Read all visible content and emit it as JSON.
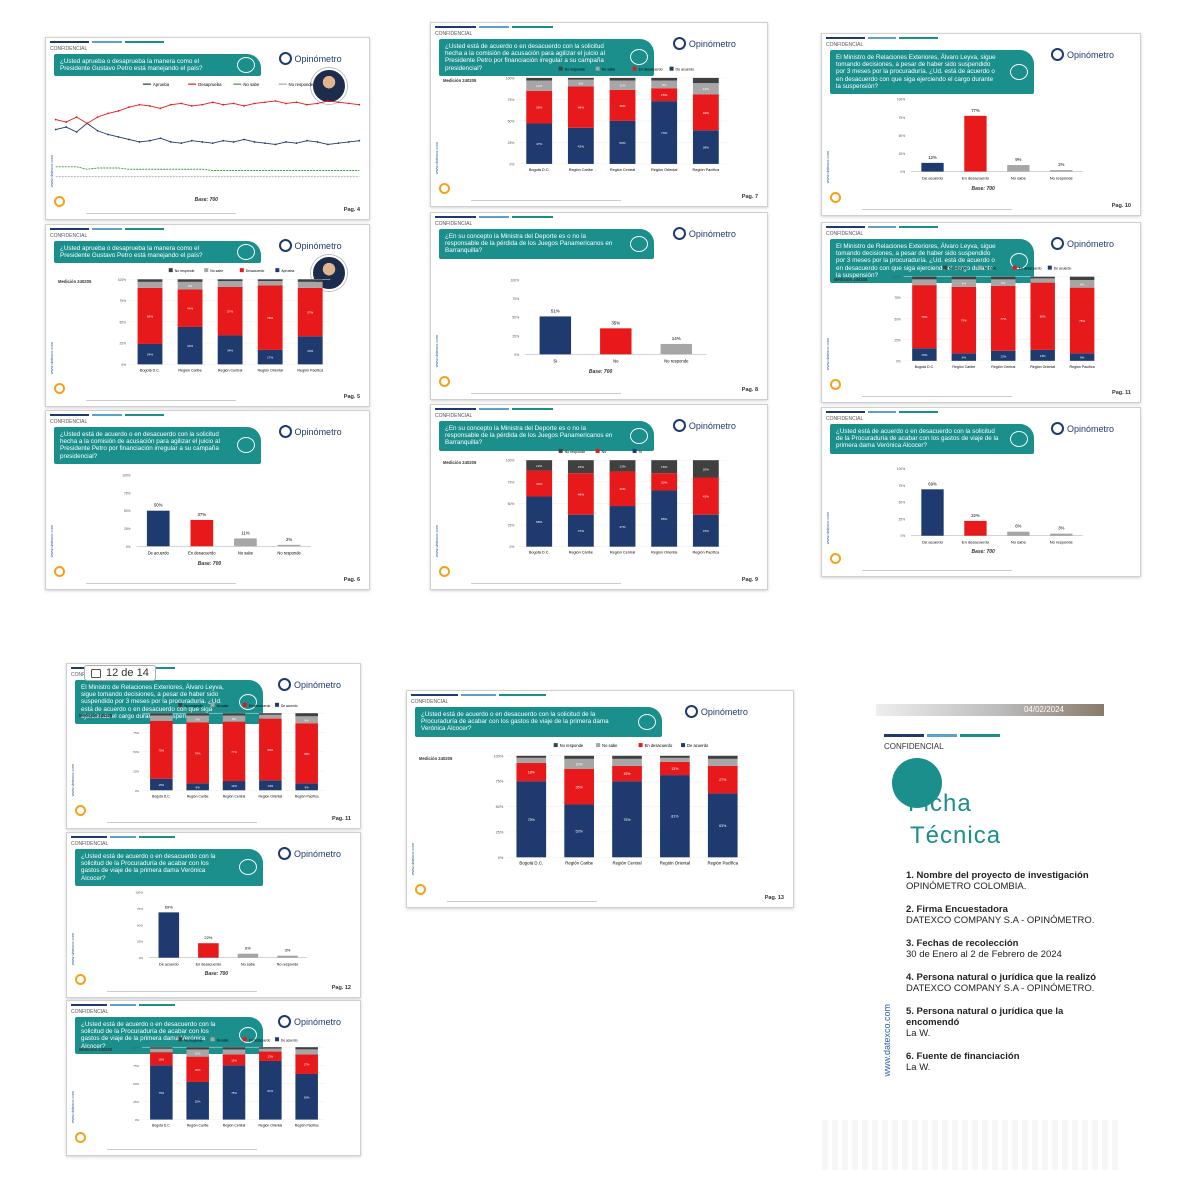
{
  "common": {
    "confidencial": "CONFIDENCIAL",
    "logo": "Opinómetro",
    "site": "www.datexco.com",
    "base": "Base: 700",
    "medicion": "Medición 240205",
    "colors": {
      "teal": "#1a8f8c",
      "navy": "#1e3a6e",
      "red": "#e8191a",
      "gray": "#a6a6a6",
      "lightgray": "#d9d9d9",
      "dark": "#404040"
    }
  },
  "questions": {
    "q_petro": "¿Usted aprueba o desaprueba la manera como el Presidente Gustavo Petro está manejando el país?",
    "q_comision": "¿Usted está de acuerdo o en desacuerdo con la solicitud hecha a la comisión de acusación para agilizar el juicio al Presidente Petro por financiación irregular a su campaña presidencial?",
    "q_deporte": "¿En su concepto la Ministra del Deporte es o no la responsable de la pérdida de los Juegos Panamericanos en Barranquilla?",
    "q_leyva": "El Ministro de Relaciones Exteriores, Álvaro Leyva, sigue tomando decisiones, a pesar de haber sido suspendido por 3 meses por la procuraduría. ¿Ud. está de acuerdo o en desacuerdo con que siga ejerciendo el cargo durante la suspensión?",
    "q_procuraduria": "¿Usted está de acuerdo o en desacuerdo con la solicitud de la Procuraduría de acabar con los gastos de viaje de la primera dama Verónica Alcocer?"
  },
  "regions": [
    "Bogotá D.C.",
    "Región Caribe",
    "Región Central",
    "Región Oriental",
    "Región Pacífica"
  ],
  "pages": {
    "p4": "Pag. 4",
    "p5": "Pag. 5",
    "p6": "Pag. 6",
    "p7": "Pag. 7",
    "p8": "Pag. 8",
    "p9": "Pag. 9",
    "p10": "Pag. 10",
    "p11": "Pag. 11",
    "p12": "Pag. 12",
    "p13": "Pag. 13"
  },
  "viewer_counter": "12 de 14",
  "chart_data": [
    {
      "id": "p4",
      "type": "line",
      "legend": [
        "Aprueba",
        "Desaprueba",
        "No sabe",
        "No responde"
      ],
      "series": [
        {
          "name": "Aprueba",
          "values": [
            40,
            42,
            38,
            45,
            39,
            36,
            34,
            32,
            30,
            31,
            33,
            30,
            29,
            31,
            30,
            29,
            31,
            30,
            32,
            30,
            29,
            28,
            30,
            29,
            31,
            30,
            28,
            29,
            30,
            31
          ]
        },
        {
          "name": "Desaprueba",
          "values": [
            48,
            46,
            50,
            45,
            50,
            53,
            55,
            58,
            60,
            59,
            57,
            60,
            61,
            59,
            60,
            62,
            60,
            61,
            59,
            61,
            62,
            63,
            61,
            62,
            60,
            61,
            63,
            62,
            61,
            60
          ]
        },
        {
          "name": "No sabe",
          "values": [
            10,
            10,
            10,
            8,
            9,
            9,
            9,
            8,
            8,
            8,
            8,
            8,
            8,
            8,
            8,
            7,
            7,
            7,
            7,
            7,
            7,
            7,
            7,
            7,
            7,
            7,
            7,
            7,
            7,
            7
          ]
        },
        {
          "name": "No responde",
          "values": [
            2,
            2,
            2,
            2,
            2,
            2,
            2,
            2,
            2,
            2,
            2,
            2,
            2,
            2,
            2,
            2,
            2,
            2,
            2,
            2,
            2,
            2,
            2,
            2,
            2,
            2,
            2,
            2,
            2,
            2
          ]
        }
      ]
    },
    {
      "id": "p5",
      "type": "bar",
      "stacked": true,
      "legend": [
        "No responde",
        "No sabe",
        "Desacuerdo",
        "Aprueba"
      ],
      "series": [
        {
          "name": "Aprueba",
          "values": [
            24,
            44,
            34,
            17,
            33
          ]
        },
        {
          "name": "Desacuerdo",
          "values": [
            66,
            44,
            57,
            76,
            57
          ]
        },
        {
          "name": "No sabe",
          "values": [
            7,
            9,
            7,
            5,
            7
          ]
        },
        {
          "name": "No responde",
          "values": [
            3,
            3,
            2,
            2,
            3
          ]
        }
      ]
    },
    {
      "id": "p6",
      "type": "bar",
      "categories": [
        "De acuerdo",
        "En desacuerdo",
        "No sabe",
        "No responde"
      ],
      "values": [
        50,
        37,
        11,
        2
      ],
      "labels": [
        "50%",
        "37%",
        "11%",
        "2%"
      ]
    },
    {
      "id": "p7",
      "type": "bar",
      "stacked": true,
      "legend": [
        "No responde",
        "No sabe",
        "En desacuerdo",
        "De acuerdo"
      ],
      "series": [
        {
          "name": "De acuerdo",
          "values": [
            47,
            42,
            50,
            73,
            39
          ]
        },
        {
          "name": "En desacuerdo",
          "values": [
            38,
            48,
            36,
            15,
            42
          ]
        },
        {
          "name": "No sabe",
          "values": [
            12,
            8,
            11,
            9,
            13
          ]
        },
        {
          "name": "No responde",
          "values": [
            3,
            2,
            3,
            3,
            6
          ]
        }
      ]
    },
    {
      "id": "p8",
      "type": "bar",
      "categories": [
        "Si",
        "No",
        "No responde"
      ],
      "values": [
        51,
        35,
        14
      ],
      "labels": [
        "51%",
        "35%",
        "14%"
      ]
    },
    {
      "id": "p9",
      "type": "bar",
      "stacked": true,
      "legend": [
        "No responde",
        "No",
        "Si"
      ],
      "series": [
        {
          "name": "Si",
          "values": [
            58,
            37,
            47,
            65,
            37
          ]
        },
        {
          "name": "No",
          "values": [
            30,
            48,
            40,
            20,
            43
          ]
        },
        {
          "name": "No responde",
          "values": [
            12,
            15,
            13,
            15,
            20
          ]
        }
      ]
    },
    {
      "id": "p10",
      "type": "bar",
      "categories": [
        "De acuerdo",
        "En desacuerdo",
        "No sabe",
        "No responde"
      ],
      "values": [
        12,
        77,
        9,
        2
      ],
      "labels": [
        "12%",
        "77%",
        "9%",
        "2%"
      ]
    },
    {
      "id": "p11",
      "type": "bar",
      "stacked": true,
      "legend": [
        "No responde",
        "No sabe",
        "En desacuerdo",
        "De acuerdo"
      ],
      "series": [
        {
          "name": "De acuerdo",
          "values": [
            15,
            9,
            12,
            13,
            9
          ]
        },
        {
          "name": "En desacuerdo",
          "values": [
            75,
            79,
            77,
            80,
            78
          ]
        },
        {
          "name": "No sabe",
          "values": [
            7,
            9,
            8,
            5,
            9
          ]
        },
        {
          "name": "No responde",
          "values": [
            3,
            3,
            3,
            2,
            4
          ]
        }
      ]
    },
    {
      "id": "p12",
      "type": "bar",
      "categories": [
        "De acuerdo",
        "En desacuerdo",
        "No sabe",
        "No responde"
      ],
      "values": [
        69,
        22,
        6,
        3
      ],
      "labels": [
        "69%",
        "22%",
        "6%",
        "3%"
      ]
    },
    {
      "id": "p13",
      "type": "bar",
      "stacked": true,
      "legend": [
        "No responde",
        "No sabe",
        "En desacuerdo",
        "De acuerdo"
      ],
      "series": [
        {
          "name": "De acuerdo",
          "values": [
            75,
            52,
            75,
            81,
            63
          ]
        },
        {
          "name": "En desacuerdo",
          "values": [
            18,
            35,
            15,
            13,
            27
          ]
        },
        {
          "name": "No sabe",
          "values": [
            5,
            10,
            7,
            4,
            7
          ]
        },
        {
          "name": "No responde",
          "values": [
            2,
            3,
            3,
            2,
            3
          ]
        }
      ]
    }
  ],
  "ficha": {
    "date": "04/02/2024",
    "confidencial": "CONFIDENCIAL",
    "title1": "Ficha",
    "title2": "Técnica",
    "site": "www.datexco.com",
    "items": [
      {
        "label": "1. Nombre del proyecto de investigación",
        "value": "OPINÓMETRO COLOMBIA."
      },
      {
        "label": "2. Firma Encuestadora",
        "value": "DATEXCO COMPANY S.A - OPINÓMETRO."
      },
      {
        "label": "3. Fechas de recolección",
        "value": "30 de Enero al 2 de Febrero de 2024"
      },
      {
        "label": "4. Persona natural o jurídica que la realizó",
        "value": "DATEXCO COMPANY S.A - OPINÓMETRO."
      },
      {
        "label": "5. Persona natural o jurídica que la encomendó",
        "value": "La W."
      },
      {
        "label": "6. Fuente de financiación",
        "value": "La W."
      }
    ]
  }
}
